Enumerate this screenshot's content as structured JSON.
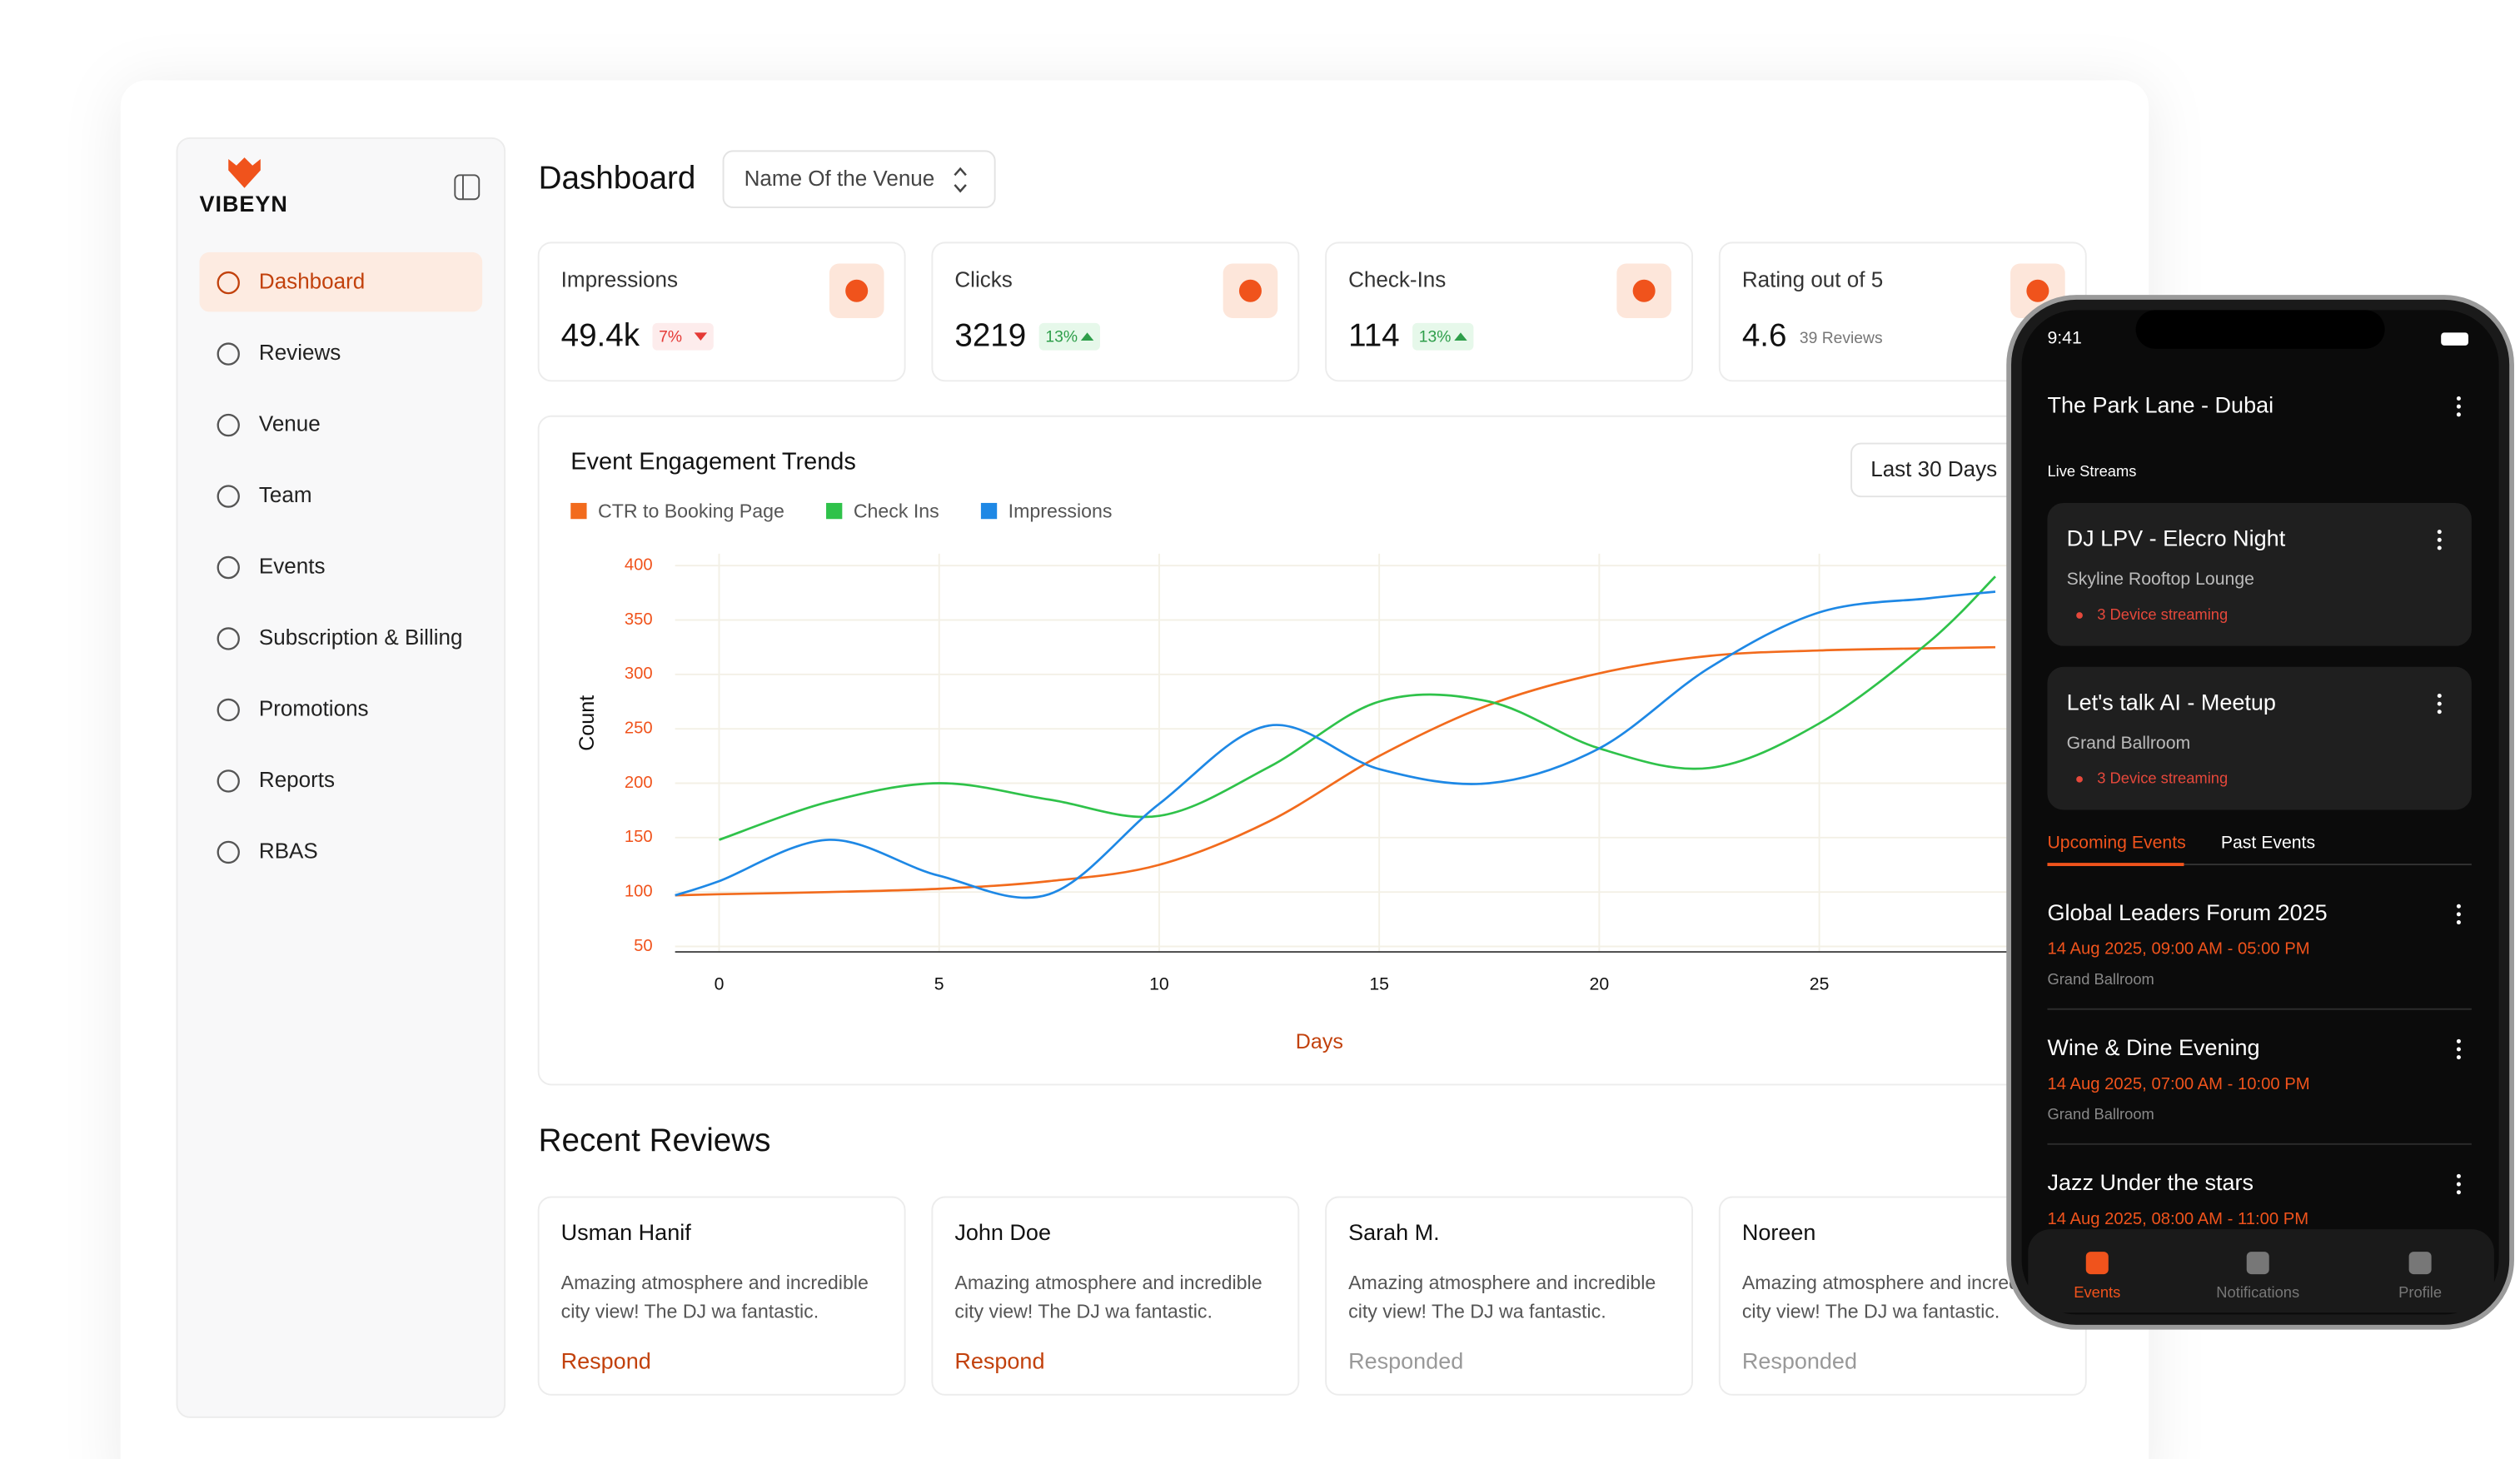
{
  "sidebar": {
    "brand": "VIBEYN",
    "nav": [
      "Dashboard",
      "Reviews",
      "Venue",
      "Team",
      "Events",
      "Subscription & Billing",
      "Promotions",
      "Reports",
      "RBAS"
    ]
  },
  "header": {
    "title": "Dashboard",
    "venue_select": "Name Of the Venue"
  },
  "stats": [
    {
      "label": "Impressions",
      "value": "49.4k",
      "change": "7%",
      "trend": "down"
    },
    {
      "label": "Clicks",
      "value": "3219",
      "change": "13%",
      "trend": "up"
    },
    {
      "label": "Check-Ins",
      "value": "114",
      "change": "13%",
      "trend": "up"
    },
    {
      "label": "Rating out of 5",
      "value": "4.6",
      "note": "39 Reviews"
    }
  ],
  "chart_data": {
    "type": "line",
    "title": "Event Engagement Trends",
    "range_select": "Last 30 Days",
    "x_label": "Days",
    "y_label": "Count",
    "x": [
      -1,
      0,
      2.5,
      5,
      7.5,
      10,
      12.5,
      15,
      17.5,
      20,
      22.5,
      25,
      27.5,
      29
    ],
    "series": [
      {
        "name": "CTR to Booking Page",
        "color": "#f26b1d",
        "values": [
          97,
          98,
          100,
          103,
          110,
          125,
          165,
          225,
          272,
          301,
          317,
          322,
          324,
          325
        ]
      },
      {
        "name": "Check Ins",
        "color": "#2fc24a",
        "values": [
          null,
          148,
          183,
          200,
          185,
          170,
          215,
          275,
          275,
          232,
          214,
          255,
          330,
          390
        ]
      },
      {
        "name": "Impressions",
        "color": "#1e88e5",
        "values": [
          97,
          110,
          148,
          115,
          98,
          181,
          253,
          213,
          200,
          232,
          306,
          357,
          370,
          376
        ]
      }
    ],
    "xlim": [
      -1,
      30
    ],
    "ylim": [
      45,
      405
    ],
    "xticks": [
      0,
      5,
      10,
      15,
      20,
      25
    ],
    "yticks": [
      50,
      100,
      150,
      200,
      250,
      300,
      350,
      400
    ],
    "grid": true
  },
  "reviews": {
    "title": "Recent Reviews",
    "items": [
      {
        "name": "Usman Hanif",
        "text": [
          "Amazing atmosphere and incredible",
          "city view! The DJ wa fantastic."
        ],
        "action": "Respond",
        "responded": false
      },
      {
        "name": "John Doe",
        "text": [
          "Amazing atmosphere and incredible",
          "city view! The DJ wa fantastic."
        ],
        "action": "Respond",
        "responded": false
      },
      {
        "name": "Sarah M.",
        "text": [
          "Amazing atmosphere and incredible",
          "city view! The DJ wa fantastic."
        ],
        "action": "Responded",
        "responded": true
      },
      {
        "name": "Noreen",
        "text": [
          "Amazing atmosphere and incredible",
          "city view! The DJ wa fantastic."
        ],
        "action": "Responded",
        "responded": true
      }
    ]
  },
  "phone": {
    "time": "9:41",
    "venue": "The Park Lane - Dubai",
    "live_title": "Live Streams",
    "live": [
      {
        "name": "DJ LPV - Elecro Night",
        "place": "Skyline Rooftop Lounge",
        "status": "3 Device streaming"
      },
      {
        "name": "Let's talk AI - Meetup",
        "place": "Grand Ballroom",
        "status": "3 Device streaming"
      }
    ],
    "tabs": [
      "Upcoming Events",
      "Past Events"
    ],
    "events": [
      {
        "name": "Global Leaders Forum 2025",
        "time": "14 Aug 2025, 09:00 AM - 05:00 PM",
        "place": "Grand Ballroom"
      },
      {
        "name": "Wine & Dine Evening",
        "time": "14 Aug 2025, 07:00 AM - 10:00 PM",
        "place": "Grand Ballroom"
      },
      {
        "name": "Jazz Under the stars",
        "time": "14 Aug 2025, 08:00 AM - 11:00 PM"
      }
    ],
    "nav": [
      "Events",
      "Notifications",
      "Profile"
    ]
  }
}
